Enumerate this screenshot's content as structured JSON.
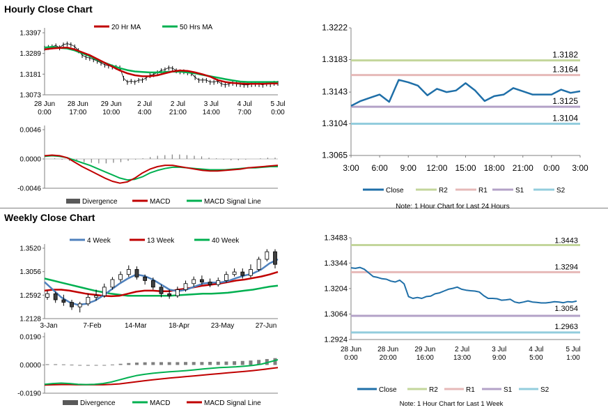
{
  "sections": {
    "hourly_title": "Hourly Close Chart",
    "weekly_title": "Weekly Close Chart"
  },
  "colors": {
    "close": "#1f6fa8",
    "r2": "#c3d69b",
    "r1": "#e6b9b8",
    "s1": "#b3a2c7",
    "s2": "#93cddd",
    "ma_red": "#c00000",
    "ma_green": "#00b050",
    "ma_blue": "#4f81bd",
    "divergence": "#7f7f7f",
    "axis": "#808080"
  },
  "chart_data": [
    {
      "id": "hourly_price",
      "type": "line",
      "title": "Hourly Close Chart",
      "legend": [
        "20 Hr MA",
        "50 Hrs MA"
      ],
      "y_ticks": [
        "1.3397",
        "1.3289",
        "1.3181",
        "1.3073"
      ],
      "ylim": [
        1.3073,
        1.3397
      ],
      "x_ticks": [
        [
          "28 Jun",
          "0:00"
        ],
        [
          "28 Jun",
          "17:00"
        ],
        [
          "29 Jun",
          "10:00"
        ],
        [
          "2 Jul",
          "4:00"
        ],
        [
          "2 Jul",
          "21:00"
        ],
        [
          "3 Jul",
          "14:00"
        ],
        [
          "4 Jul",
          "7:00"
        ],
        [
          "5 Jul",
          "0:00"
        ]
      ],
      "series": [
        {
          "name": "Price",
          "values": [
            1.3318,
            1.3322,
            1.3325,
            1.333,
            1.332,
            1.3335,
            1.334,
            1.3336,
            1.3325,
            1.3305,
            1.328,
            1.327,
            1.3265,
            1.3258,
            1.325,
            1.324,
            1.323,
            1.3225,
            1.322,
            1.3218,
            1.3215,
            1.316,
            1.314,
            1.3145,
            1.314,
            1.315,
            1.315,
            1.3162,
            1.3175,
            1.318,
            1.319,
            1.32,
            1.3205,
            1.3215,
            1.3212,
            1.32,
            1.3195,
            1.3195,
            1.319,
            1.3185,
            1.3165,
            1.315,
            1.315,
            1.315,
            1.314,
            1.314,
            1.3145,
            1.313,
            1.3125,
            1.313,
            1.3135,
            1.313,
            1.3128,
            1.3125,
            1.3125,
            1.3128,
            1.313,
            1.3128,
            1.3125,
            1.3132,
            1.3128,
            1.3135,
            1.3135
          ]
        },
        {
          "name": "20 Hr MA",
          "values": [
            1.331,
            1.3315,
            1.3318,
            1.332,
            1.331,
            1.3295,
            1.328,
            1.326,
            1.324,
            1.322,
            1.32,
            1.3185,
            1.3175,
            1.317,
            1.317,
            1.3175,
            1.3185,
            1.3195,
            1.32,
            1.3198,
            1.319,
            1.318,
            1.3168,
            1.315,
            1.314,
            1.3135,
            1.3132,
            1.313,
            1.313,
            1.313,
            1.3132,
            1.3132
          ]
        },
        {
          "name": "50 Hrs MA",
          "values": [
            1.332,
            1.3323,
            1.3318,
            1.3315,
            1.3305,
            1.329,
            1.3275,
            1.3255,
            1.324,
            1.3225,
            1.3212,
            1.3202,
            1.3195,
            1.3192,
            1.319,
            1.319,
            1.3192,
            1.3194,
            1.3194,
            1.319,
            1.3185,
            1.3177,
            1.317,
            1.3163,
            1.3155,
            1.3148,
            1.3142,
            1.314,
            1.314,
            1.314,
            1.314,
            1.314
          ]
        }
      ]
    },
    {
      "id": "hourly_macd",
      "type": "line",
      "legend": [
        "Divergence",
        "MACD",
        "MACD Signal Line"
      ],
      "y_ticks": [
        "0.0046",
        "0.0000",
        "-0.0046"
      ],
      "ylim": [
        -0.0046,
        0.0046
      ],
      "series": [
        {
          "name": "Divergence",
          "values": [
            0.0,
            0.0001,
            -0.0001,
            -0.0003,
            -0.0004,
            -0.0005,
            -0.0006,
            -0.0007,
            -0.0007,
            -0.0006,
            -0.0005,
            -0.0003,
            -0.0001,
            0.0001,
            0.0003,
            0.0005,
            0.0006,
            0.0007,
            0.0007,
            0.0006,
            0.0005,
            0.0004,
            0.0002,
            0.0001,
            -0.0001,
            -0.0002,
            -0.0002,
            -0.0001,
            0.0,
            0.0001,
            0.0002,
            0.0002
          ]
        },
        {
          "name": "MACD",
          "values": [
            0.0005,
            0.0006,
            0.0005,
            0.0002,
            -0.0005,
            -0.0012,
            -0.0018,
            -0.0024,
            -0.003,
            -0.0035,
            -0.0038,
            -0.0036,
            -0.003,
            -0.0022,
            -0.0016,
            -0.0012,
            -0.001,
            -0.001,
            -0.0012,
            -0.0014,
            -0.0016,
            -0.0018,
            -0.0019,
            -0.0019,
            -0.0018,
            -0.0017,
            -0.0016,
            -0.0014,
            -0.0013,
            -0.0012,
            -0.0011,
            -0.001
          ]
        },
        {
          "name": "MACD Signal Line",
          "values": [
            0.0004,
            0.0005,
            0.0004,
            0.0002,
            -0.0002,
            -0.0006,
            -0.001,
            -0.0015,
            -0.002,
            -0.0025,
            -0.003,
            -0.0033,
            -0.0032,
            -0.0028,
            -0.0022,
            -0.0018,
            -0.0015,
            -0.0013,
            -0.0013,
            -0.0014,
            -0.0015,
            -0.0016,
            -0.0017,
            -0.0017,
            -0.0017,
            -0.0016,
            -0.0015,
            -0.0014,
            -0.0014,
            -0.0013,
            -0.0012,
            -0.0012
          ]
        }
      ]
    },
    {
      "id": "hourly_24h",
      "type": "line",
      "note": "Note: 1 Hour Chart for Last 24 Hours",
      "legend": [
        "Close",
        "R2",
        "R1",
        "S1",
        "S2"
      ],
      "y_ticks": [
        "1.3222",
        "1.3183",
        "1.3143",
        "1.3104",
        "1.3065"
      ],
      "ylim": [
        1.3065,
        1.3222
      ],
      "x_ticks": [
        "3:00",
        "6:00",
        "9:00",
        "12:00",
        "15:00",
        "18:00",
        "21:00",
        "0:00",
        "3:00"
      ],
      "levels": {
        "R2": 1.3182,
        "R1": 1.3164,
        "S1": 1.3125,
        "S2": 1.3104
      },
      "level_labels": {
        "R2": "1.3182",
        "R1": "1.3164",
        "S1": "1.3125",
        "S2": "1.3104"
      },
      "series": [
        {
          "name": "Close",
          "values": [
            1.3126,
            1.3132,
            1.3136,
            1.314,
            1.3131,
            1.3158,
            1.3155,
            1.3151,
            1.3139,
            1.3147,
            1.3143,
            1.3145,
            1.3154,
            1.3145,
            1.3132,
            1.3138,
            1.314,
            1.3148,
            1.3144,
            1.314,
            1.314,
            1.314,
            1.3146,
            1.3142,
            1.3144
          ]
        }
      ]
    },
    {
      "id": "weekly_price",
      "type": "line",
      "title": "Weekly Close Chart",
      "legend": [
        "4 Week",
        "13 Week",
        "40 Week"
      ],
      "y_ticks": [
        "1.3520",
        "1.3056",
        "1.2592",
        "1.2128"
      ],
      "ylim": [
        1.2128,
        1.352
      ],
      "x_ticks": [
        "3-Jan",
        "7-Feb",
        "14-Mar",
        "18-Apr",
        "23-May",
        "27-Jun"
      ],
      "series": [
        {
          "name": "Candles (open, close, high, low)",
          "values": [
            [
              1.255,
              1.262,
              1.268,
              1.25
            ],
            [
              1.262,
              1.25,
              1.266,
              1.244
            ],
            [
              1.25,
              1.245,
              1.26,
              1.238
            ],
            [
              1.245,
              1.236,
              1.25,
              1.23
            ],
            [
              1.236,
              1.242,
              1.246,
              1.225
            ],
            [
              1.242,
              1.255,
              1.262,
              1.238
            ],
            [
              1.255,
              1.258,
              1.27,
              1.248
            ],
            [
              1.258,
              1.275,
              1.282,
              1.254
            ],
            [
              1.275,
              1.29,
              1.295,
              1.27
            ],
            [
              1.29,
              1.3,
              1.306,
              1.285
            ],
            [
              1.3,
              1.31,
              1.318,
              1.295
            ],
            [
              1.31,
              1.295,
              1.316,
              1.29
            ],
            [
              1.295,
              1.288,
              1.3,
              1.28
            ],
            [
              1.288,
              1.275,
              1.294,
              1.27
            ],
            [
              1.275,
              1.262,
              1.28,
              1.255
            ],
            [
              1.262,
              1.258,
              1.27,
              1.252
            ],
            [
              1.258,
              1.27,
              1.276,
              1.254
            ],
            [
              1.27,
              1.282,
              1.288,
              1.266
            ],
            [
              1.282,
              1.29,
              1.296,
              1.276
            ],
            [
              1.29,
              1.285,
              1.298,
              1.28
            ],
            [
              1.285,
              1.28,
              1.292,
              1.275
            ],
            [
              1.28,
              1.288,
              1.294,
              1.276
            ],
            [
              1.288,
              1.3,
              1.306,
              1.284
            ],
            [
              1.3,
              1.305,
              1.312,
              1.296
            ],
            [
              1.305,
              1.298,
              1.312,
              1.292
            ],
            [
              1.298,
              1.31,
              1.32,
              1.294
            ],
            [
              1.31,
              1.33,
              1.335,
              1.306
            ],
            [
              1.33,
              1.345,
              1.35,
              1.326
            ],
            [
              1.345,
              1.32,
              1.35,
              1.312
            ]
          ]
        },
        {
          "name": "4 Week",
          "values": [
            1.285,
            1.27,
            1.255,
            1.245,
            1.24,
            1.242,
            1.248,
            1.258,
            1.27,
            1.282,
            1.292,
            1.3,
            1.297,
            1.29,
            1.28,
            1.27,
            1.267,
            1.27,
            1.276,
            1.282,
            1.284,
            1.284,
            1.287,
            1.293,
            1.298,
            1.302,
            1.31,
            1.322,
            1.33
          ]
        },
        {
          "name": "13 Week",
          "values": [
            1.268,
            1.27,
            1.27,
            1.268,
            1.265,
            1.262,
            1.26,
            1.258,
            1.257,
            1.258,
            1.262,
            1.266,
            1.268,
            1.268,
            1.267,
            1.267,
            1.27,
            1.272,
            1.275,
            1.278,
            1.28,
            1.282,
            1.285,
            1.288,
            1.29,
            1.293,
            1.296,
            1.3,
            1.305
          ]
        },
        {
          "name": "40 Week",
          "values": [
            1.292,
            1.288,
            1.284,
            1.28,
            1.276,
            1.272,
            1.268,
            1.265,
            1.262,
            1.26,
            1.258,
            1.258,
            1.258,
            1.258,
            1.258,
            1.258,
            1.259,
            1.26,
            1.261,
            1.262,
            1.262,
            1.263,
            1.264,
            1.266,
            1.268,
            1.27,
            1.273,
            1.276,
            1.278
          ]
        }
      ]
    },
    {
      "id": "weekly_macd",
      "type": "line",
      "legend": [
        "Divergence",
        "MACD",
        "MACD Signal Line"
      ],
      "y_ticks": [
        "0.0190",
        "0.0000",
        "-0.0190"
      ],
      "ylim": [
        -0.019,
        0.019
      ],
      "series": [
        {
          "name": "Divergence",
          "values": [
            0.0005,
            0.0005,
            0.0004,
            0.0002,
            -0.0003,
            -0.0005,
            -0.0004,
            -0.0001,
            0.0003,
            0.0008,
            0.0013,
            0.0016,
            0.0018,
            0.0019,
            0.0019,
            0.0019,
            0.0019,
            0.002,
            0.002,
            0.002,
            0.0021,
            0.0022,
            0.0023,
            0.0025,
            0.0027,
            0.003,
            0.0034,
            0.004,
            0.0046
          ]
        },
        {
          "name": "MACD",
          "values": [
            -0.013,
            -0.0125,
            -0.0122,
            -0.0125,
            -0.013,
            -0.0132,
            -0.013,
            -0.0125,
            -0.0115,
            -0.01,
            -0.0085,
            -0.0072,
            -0.0063,
            -0.0056,
            -0.005,
            -0.0046,
            -0.0042,
            -0.0038,
            -0.0033,
            -0.0027,
            -0.0022,
            -0.0018,
            -0.0015,
            -0.0012,
            -0.0008,
            -0.0003,
            0.0005,
            0.002,
            0.0035
          ]
        },
        {
          "name": "MACD Signal Line",
          "values": [
            -0.0135,
            -0.0133,
            -0.0132,
            -0.0132,
            -0.0133,
            -0.0133,
            -0.0133,
            -0.0133,
            -0.0131,
            -0.0127,
            -0.012,
            -0.0113,
            -0.0106,
            -0.01,
            -0.0094,
            -0.0088,
            -0.0083,
            -0.0078,
            -0.0073,
            -0.0068,
            -0.0063,
            -0.0058,
            -0.0053,
            -0.0048,
            -0.0043,
            -0.0038,
            -0.0032,
            -0.0025,
            -0.0018
          ]
        }
      ]
    },
    {
      "id": "weekly_1w",
      "type": "line",
      "note": "Note: 1 Hour Chart for Last 1 Week",
      "legend": [
        "Close",
        "R2",
        "R1",
        "S1",
        "S2"
      ],
      "y_ticks": [
        "1.3483",
        "1.3344",
        "1.3204",
        "1.3064",
        "1.2924"
      ],
      "ylim": [
        1.2924,
        1.3483
      ],
      "x_ticks": [
        [
          "28 Jun",
          "0:00"
        ],
        [
          "28 Jun",
          "20:00"
        ],
        [
          "29 Jun",
          "16:00"
        ],
        [
          "2 Jul",
          "13:00"
        ],
        [
          "3 Jul",
          "9:00"
        ],
        [
          "4 Jul",
          "5:00"
        ],
        [
          "5 Jul",
          "1:00"
        ]
      ],
      "levels": {
        "R2": 1.3443,
        "R1": 1.3294,
        "S1": 1.3054,
        "S2": 1.2963
      },
      "level_labels": {
        "R2": "1.3443",
        "R1": "1.3294",
        "S1": "1.3054",
        "S2": "1.2963"
      },
      "series": [
        {
          "name": "Close",
          "values": [
            1.3318,
            1.3315,
            1.332,
            1.331,
            1.329,
            1.327,
            1.3265,
            1.3258,
            1.3255,
            1.3245,
            1.324,
            1.325,
            1.323,
            1.316,
            1.315,
            1.3155,
            1.315,
            1.316,
            1.3162,
            1.3175,
            1.318,
            1.319,
            1.32,
            1.3205,
            1.3212,
            1.32,
            1.3195,
            1.3192,
            1.319,
            1.3185,
            1.3165,
            1.315,
            1.315,
            1.3148,
            1.314,
            1.3142,
            1.3145,
            1.313,
            1.3125,
            1.313,
            1.3136,
            1.313,
            1.3128,
            1.3125,
            1.3125,
            1.3128,
            1.3132,
            1.313,
            1.3126,
            1.3132,
            1.313,
            1.3135
          ]
        }
      ]
    }
  ]
}
